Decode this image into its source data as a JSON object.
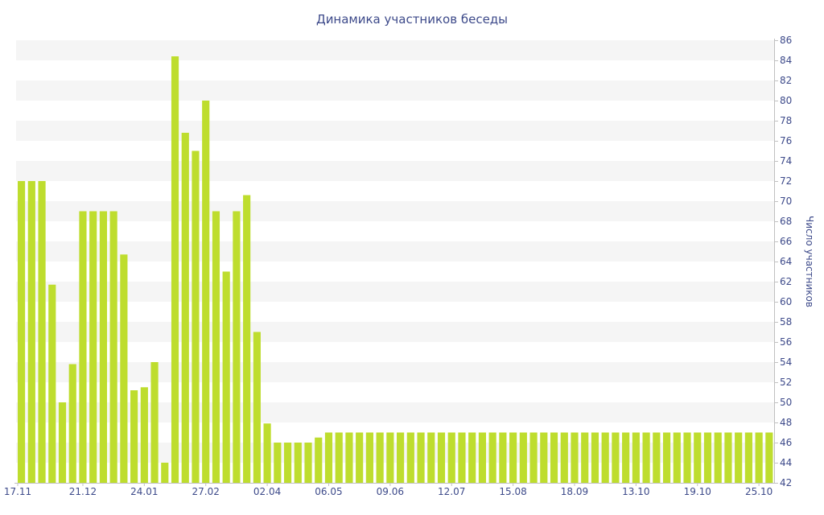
{
  "chart_data": {
    "type": "bar",
    "title": "Динамика участников беседы",
    "ylabel": "Число участников",
    "xlabel": "",
    "ylim": [
      42,
      86
    ],
    "yticks": [
      42,
      44,
      46,
      48,
      50,
      52,
      54,
      56,
      58,
      60,
      62,
      64,
      66,
      68,
      70,
      72,
      74,
      76,
      78,
      80,
      82,
      84,
      86
    ],
    "x_tick_labels": [
      {
        "label": "17.11",
        "index": 0
      },
      {
        "label": "21.12",
        "index": 6
      },
      {
        "label": "24.01",
        "index": 12
      },
      {
        "label": "27.02",
        "index": 18
      },
      {
        "label": "02.04",
        "index": 24
      },
      {
        "label": "06.05",
        "index": 30
      },
      {
        "label": "09.06",
        "index": 36
      },
      {
        "label": "12.07",
        "index": 42
      },
      {
        "label": "15.08",
        "index": 48
      },
      {
        "label": "18.09",
        "index": 54
      },
      {
        "label": "13.10",
        "index": 60
      },
      {
        "label": "19.10",
        "index": 66
      },
      {
        "label": "25.10",
        "index": 72
      }
    ],
    "series": [
      {
        "color": "#bedd2e",
        "values": [
          72,
          72,
          72,
          61.7,
          50,
          53.8,
          69,
          69,
          69,
          69,
          64.7,
          51.2,
          51.5,
          54,
          44,
          84.4,
          76.8,
          75,
          80,
          69,
          63,
          69,
          70.6,
          57,
          47.9,
          46,
          46,
          46,
          46,
          46.5,
          47,
          47,
          47,
          47,
          47,
          47,
          47,
          47,
          47,
          47,
          47,
          47,
          47,
          47,
          47,
          47,
          47,
          47,
          47,
          47,
          47,
          47,
          47,
          47,
          47,
          47,
          47,
          47,
          47,
          47,
          47,
          47,
          47,
          47,
          47,
          47,
          47,
          47,
          47,
          47,
          47,
          47,
          47,
          47
        ]
      }
    ],
    "grid": "horizontal alternating bands",
    "y_axis_position": "right",
    "colors": {
      "band": "#f5f5f5",
      "text": "#3d4a8a",
      "axis": "#c0c0c0"
    }
  }
}
